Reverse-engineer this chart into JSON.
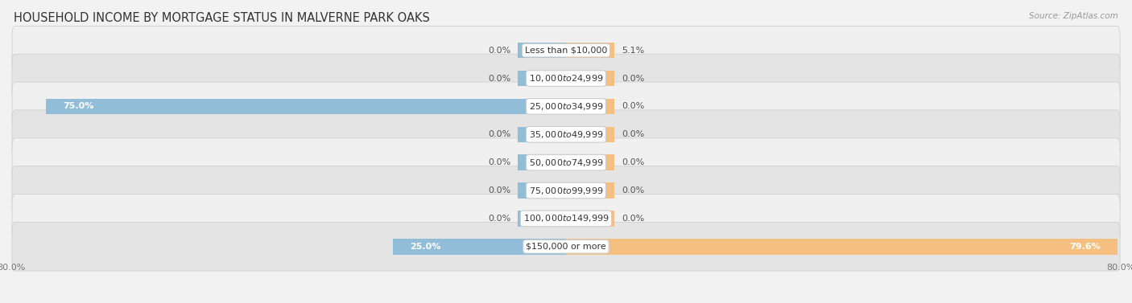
{
  "title": "HOUSEHOLD INCOME BY MORTGAGE STATUS IN MALVERNE PARK OAKS",
  "source": "Source: ZipAtlas.com",
  "categories": [
    "Less than $10,000",
    "$10,000 to $24,999",
    "$25,000 to $34,999",
    "$35,000 to $49,999",
    "$50,000 to $74,999",
    "$75,000 to $99,999",
    "$100,000 to $149,999",
    "$150,000 or more"
  ],
  "without_mortgage": [
    0.0,
    0.0,
    75.0,
    0.0,
    0.0,
    0.0,
    0.0,
    25.0
  ],
  "with_mortgage": [
    5.1,
    0.0,
    0.0,
    0.0,
    0.0,
    0.0,
    0.0,
    79.6
  ],
  "color_without": "#92bdd9",
  "color_with": "#f5bf80",
  "color_without_stub": "#aac8e0",
  "color_with_stub": "#f8d5aa",
  "xlim_left": -80.0,
  "xlim_right": 80.0,
  "stub_size": 7.0,
  "bar_height": 0.72,
  "row_bg_light": "#f0f0f0",
  "row_bg_dark": "#e4e4e4",
  "row_edge": "#d0d0d0",
  "title_fontsize": 10.5,
  "cat_fontsize": 8.0,
  "val_fontsize": 8.0,
  "axis_fontsize": 8.0,
  "source_fontsize": 7.5
}
